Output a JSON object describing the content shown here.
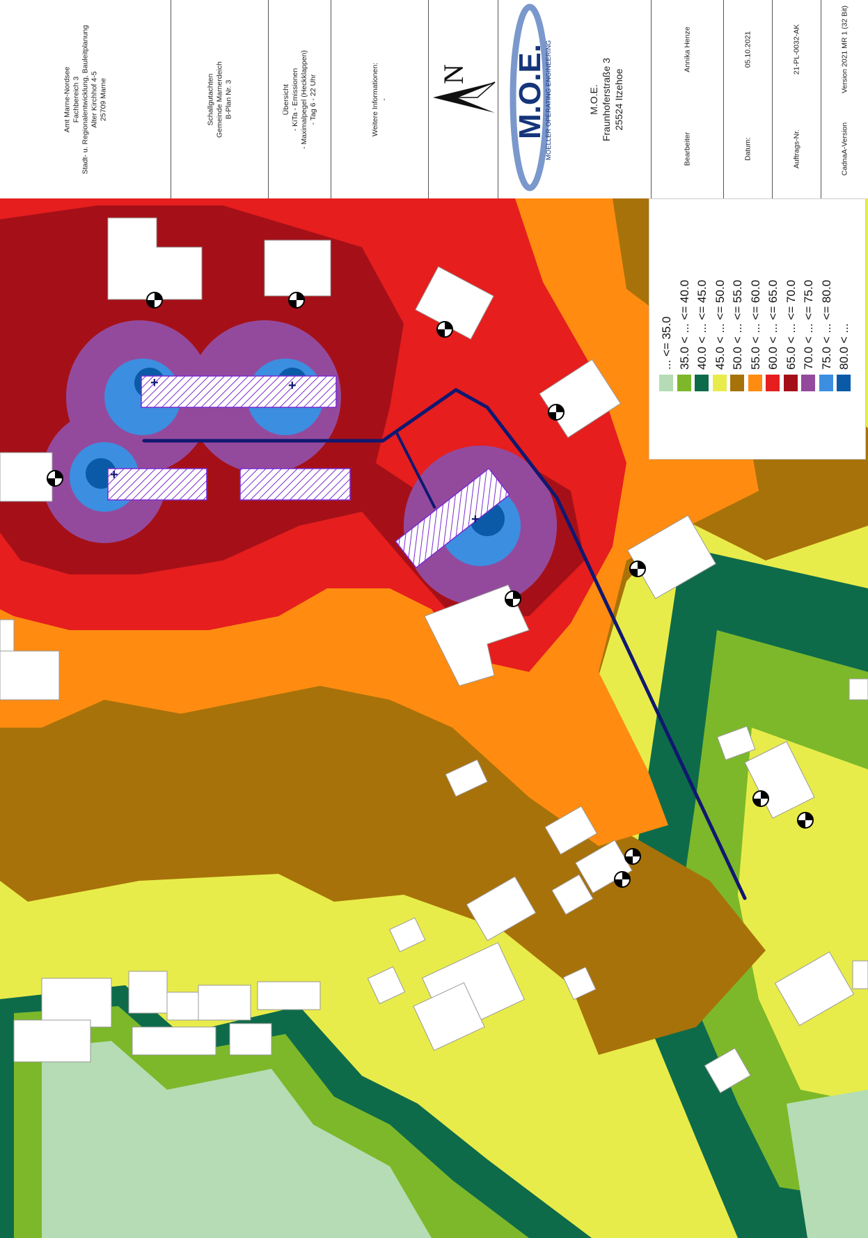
{
  "title_block": {
    "client_line1": "Amt Marne-Nordsee",
    "client_line2": "Fachbereich 3",
    "client_line3": "Stadt- u. Regionalentwicklung, Bauleitplanung",
    "client_line4": "Alter Kirchhof 4-5",
    "client_line5": "25709 Marne",
    "project_line1": "Schallgutachten",
    "project_line2": "Gemeinde Marnerdeich",
    "project_line3": "B-Plan Nr. 3",
    "content_line1": "Übersicht",
    "content_line2": "- KiTa - Emissionen",
    "content_line3": "- Maximalpegel (Heckklappen)",
    "content_line4": "- Tag 6 - 22 Uhr",
    "info_label": "Weitere Informationen:",
    "info_value": "-",
    "north_label": "N",
    "logo_text": "M.O.E.",
    "logo_sub": "MOELLER OPERATING ENGINEERING",
    "company_line1": "M.O.E.",
    "company_line2": "Fraunhoferstraße 3",
    "company_line3": "25524 Itzehoe",
    "editor_label": "Bearbeiter",
    "editor_value": "Annika Henze",
    "date_label": "Datum:",
    "date_value": "05.10.2021",
    "order_label": "Auftrags-Nr.",
    "order_value": "21-PL-0032-AK",
    "version_label": "CadnaA-Version",
    "version_value": "Version 2021 MR 1 (32 Bit)"
  },
  "legend": [
    {
      "label": "... <= 35.0",
      "color": "#b5dcb4"
    },
    {
      "label": "35.0 < ... <= 40.0",
      "color": "#7cb82a"
    },
    {
      "label": "40.0 < ... <= 45.0",
      "color": "#0e6b4a"
    },
    {
      "label": "45.0 < ... <= 50.0",
      "color": "#e8ec4a"
    },
    {
      "label": "50.0 < ... <= 55.0",
      "color": "#a8720a"
    },
    {
      "label": "55.0 < ... <= 60.0",
      "color": "#ff8c10"
    },
    {
      "label": "60.0 < ... <= 65.0",
      "color": "#e61e1e"
    },
    {
      "label": "65.0 < ... <= 70.0",
      "color": "#a51018"
    },
    {
      "label": "70.0 < ... <= 75.0",
      "color": "#944a9c"
    },
    {
      "label": "75.0 < ... <= 80.0",
      "color": "#3c8ee0"
    },
    {
      "label": "80.0 < ...",
      "color": "#0a5aa8"
    }
  ],
  "colors": {
    "route": "#101870",
    "building": "#ffffff",
    "parking_hatch": "#7a2ad0"
  }
}
